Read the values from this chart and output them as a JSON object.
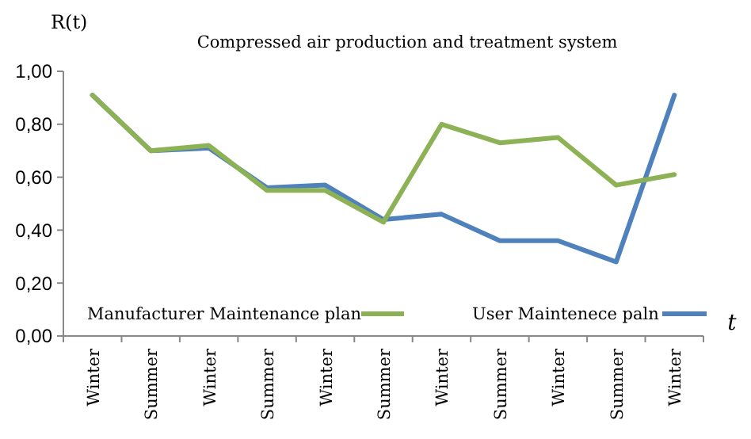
{
  "chart_data": {
    "type": "line",
    "title": "Compressed air production and treatment system",
    "ylabel": "R(t)",
    "xlabel": "t",
    "categories": [
      "Winter",
      "Summer",
      "Winter",
      "Summer",
      "Winter",
      "Summer",
      "Winter",
      "Summer",
      "Winter",
      "Summer",
      "Winter"
    ],
    "series": [
      {
        "name": "Manufacturer Maintenance plan",
        "color": "#8db255",
        "values": [
          0.91,
          0.7,
          0.72,
          0.55,
          0.55,
          0.43,
          0.8,
          0.73,
          0.75,
          0.57,
          0.61
        ]
      },
      {
        "name": "User Maintenece paln",
        "color": "#4f81bd",
        "values": [
          0.91,
          0.7,
          0.71,
          0.56,
          0.57,
          0.44,
          0.46,
          0.36,
          0.36,
          0.28,
          0.91
        ]
      }
    ],
    "ylim": [
      0,
      1
    ],
    "yticks": [
      {
        "value": 0,
        "label": "0,00"
      },
      {
        "value": 0.2,
        "label": "0,20"
      },
      {
        "value": 0.4,
        "label": "0,40"
      },
      {
        "value": 0.6,
        "label": "0,60"
      },
      {
        "value": 0.8,
        "label": "0,80"
      },
      {
        "value": 1,
        "label": "1,00"
      }
    ],
    "grid": false,
    "legend": "bottom",
    "marker": "none",
    "line_style": "solid"
  }
}
